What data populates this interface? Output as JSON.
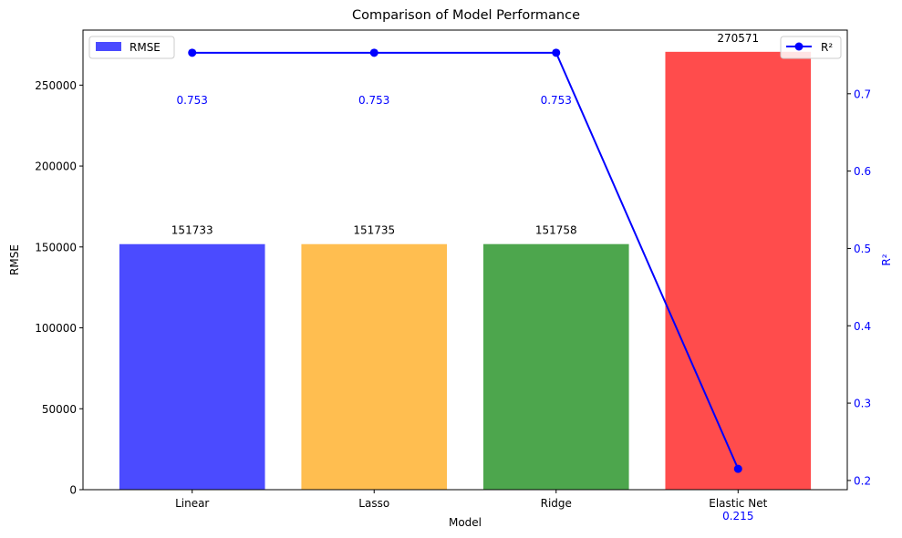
{
  "chart_data": {
    "type": "bar",
    "title": "Comparison of Model Performance",
    "xlabel": "Model",
    "ylabel": "RMSE",
    "y2label": "R²",
    "categories": [
      "Linear",
      "Lasso",
      "Ridge",
      "Elastic Net"
    ],
    "ylim": [
      0,
      284000
    ],
    "yticks": [
      0,
      50000,
      100000,
      150000,
      200000,
      250000
    ],
    "y2lim": [
      0.1881,
      0.7823
    ],
    "y2ticks": [
      0.2,
      0.3,
      0.4,
      0.5,
      0.6,
      0.7
    ],
    "series": [
      {
        "name": "RMSE",
        "kind": "bar",
        "axis": "left",
        "values": [
          151733,
          151735,
          151758,
          270571
        ],
        "labels": [
          "151733",
          "151735",
          "151758",
          "270571"
        ],
        "colors": [
          "#4b4bff",
          "#ffbe50",
          "#4da64d",
          "#ff4c4c"
        ]
      },
      {
        "name": "R²",
        "kind": "line",
        "axis": "right",
        "values": [
          0.753,
          0.753,
          0.753,
          0.215
        ],
        "labels": [
          "0.753",
          "0.753",
          "0.753",
          "0.215"
        ],
        "color": "#0000ff"
      }
    ],
    "legend_bar_placement": "upper-left",
    "legend_line_placement": "upper-right",
    "grid": false
  }
}
